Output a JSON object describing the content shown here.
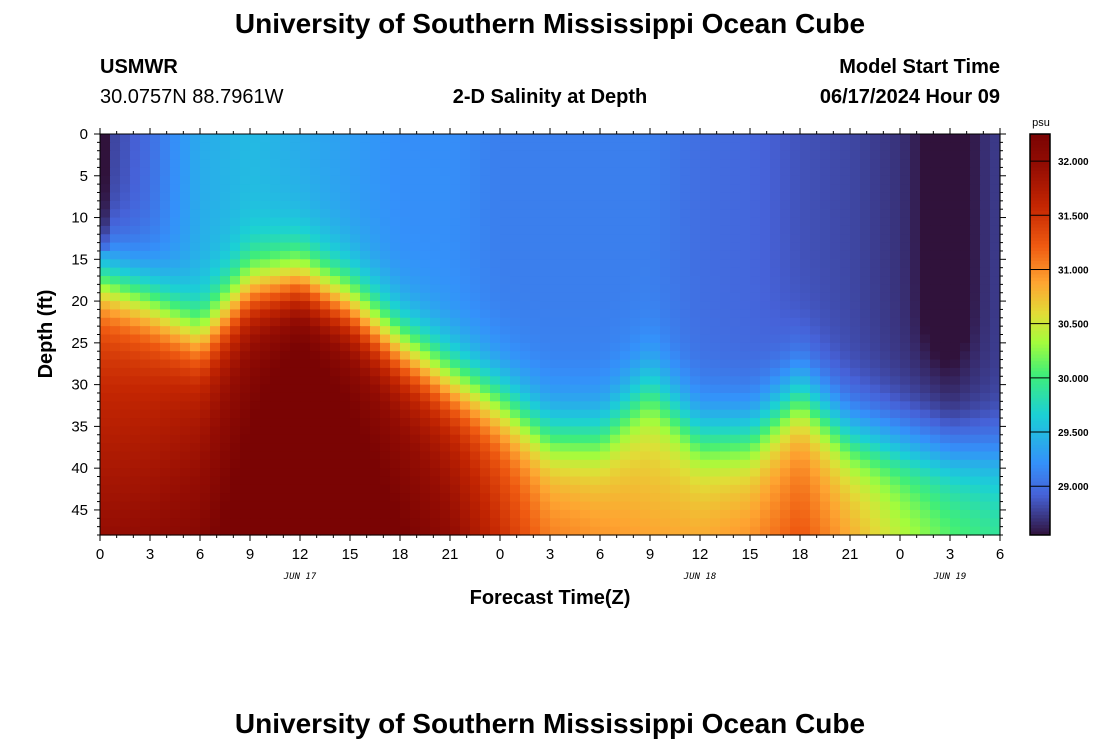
{
  "header": {
    "title": "University of Southern Mississippi Ocean Cube",
    "station_name": "USMWR",
    "station_coords": "30.0757N  88.7961W",
    "plot_title": "2-D Salinity at Depth",
    "model_start_label": "Model Start Time",
    "model_start_value": "06/17/2024 Hour 09"
  },
  "footer": {
    "title": "University of Southern Mississippi Ocean Cube"
  },
  "colors": {
    "background": "#ffffff",
    "axis": "#000000"
  },
  "chart_data": {
    "type": "heatmap",
    "title": "2-D Salinity at Depth",
    "xlabel": "Forecast Time(Z)",
    "ylabel": "Depth (ft)",
    "x_range_hours": [
      0,
      54
    ],
    "y_range": [
      0,
      48
    ],
    "x_ticks": [
      {
        "hour": 0,
        "label": "0"
      },
      {
        "hour": 3,
        "label": "3"
      },
      {
        "hour": 6,
        "label": "6"
      },
      {
        "hour": 9,
        "label": "9"
      },
      {
        "hour": 12,
        "label": "12"
      },
      {
        "hour": 15,
        "label": "15"
      },
      {
        "hour": 18,
        "label": "18"
      },
      {
        "hour": 21,
        "label": "21"
      },
      {
        "hour": 24,
        "label": "0"
      },
      {
        "hour": 27,
        "label": "3"
      },
      {
        "hour": 30,
        "label": "6"
      },
      {
        "hour": 33,
        "label": "9"
      },
      {
        "hour": 36,
        "label": "12"
      },
      {
        "hour": 39,
        "label": "15"
      },
      {
        "hour": 42,
        "label": "18"
      },
      {
        "hour": 45,
        "label": "21"
      },
      {
        "hour": 48,
        "label": "0"
      },
      {
        "hour": 51,
        "label": "3"
      },
      {
        "hour": 54,
        "label": "6"
      }
    ],
    "date_labels": [
      {
        "hour": 12,
        "label": "JUN 17"
      },
      {
        "hour": 36,
        "label": "JUN 18"
      },
      {
        "hour": 51,
        "label": "JUN 19"
      }
    ],
    "y_ticks": [
      {
        "depth": 0,
        "label": "0"
      },
      {
        "depth": 5,
        "label": "5"
      },
      {
        "depth": 10,
        "label": "10"
      },
      {
        "depth": 15,
        "label": "15"
      },
      {
        "depth": 20,
        "label": "20"
      },
      {
        "depth": 25,
        "label": "25"
      },
      {
        "depth": 30,
        "label": "30"
      },
      {
        "depth": 35,
        "label": "35"
      },
      {
        "depth": 40,
        "label": "40"
      },
      {
        "depth": 45,
        "label": "45"
      }
    ],
    "colorbar": {
      "units": "psu",
      "min": 28.55,
      "max": 32.25,
      "ticks": [
        {
          "value": 29.0,
          "label": "29.000"
        },
        {
          "value": 29.5,
          "label": "29.500"
        },
        {
          "value": 30.0,
          "label": "30.000"
        },
        {
          "value": 30.5,
          "label": "30.500"
        },
        {
          "value": 31.0,
          "label": "31.000"
        },
        {
          "value": 31.5,
          "label": "31.500"
        },
        {
          "value": 32.0,
          "label": "32.000"
        }
      ]
    },
    "series": [
      {
        "name": "salinity_psu",
        "description_hours": [
          0,
          3,
          6,
          9,
          12,
          15,
          18,
          21,
          24,
          27,
          30,
          33,
          36,
          39,
          42,
          45,
          48,
          51,
          54
        ],
        "halocline_depth_ft": [
          17,
          20,
          24,
          18,
          17,
          20,
          25,
          29,
          32,
          36,
          36,
          30,
          36,
          36,
          31,
          36,
          37,
          38,
          38
        ],
        "surface_psu": [
          28.7,
          29.0,
          29.4,
          29.5,
          29.4,
          29.3,
          29.2,
          29.2,
          29.1,
          29.1,
          29.1,
          29.1,
          29.0,
          28.95,
          28.85,
          28.8,
          28.7,
          28.6,
          28.75
        ],
        "bottom_psu": [
          31.3,
          31.4,
          31.6,
          31.9,
          32.2,
          32.0,
          31.8,
          31.6,
          31.2,
          30.8,
          30.7,
          30.5,
          30.6,
          30.7,
          30.9,
          30.6,
          30.2,
          29.9,
          29.7
        ]
      }
    ]
  }
}
